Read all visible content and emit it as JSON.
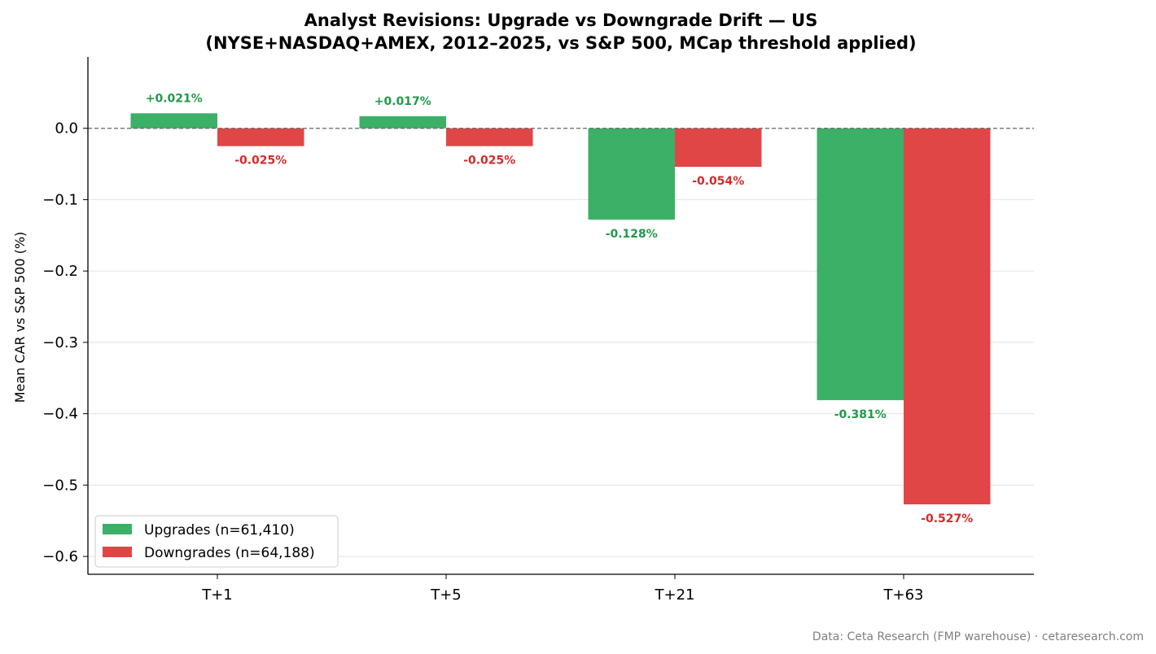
{
  "chart_data": {
    "type": "bar",
    "title_line1": "Analyst Revisions: Upgrade vs Downgrade Drift — US",
    "title_line2": "(NYSE+NASDAQ+AMEX, 2012–2025, vs S&P 500, MCap threshold applied)",
    "xlabel": "",
    "ylabel": "Mean CAR vs S&P 500 (%)",
    "categories": [
      "T+1",
      "T+5",
      "T+21",
      "T+63"
    ],
    "series": [
      {
        "name": "Upgrades (n=61,410)",
        "color": "#3bb066",
        "label_color": "#1f9b49",
        "values": [
          0.021,
          0.017,
          -0.128,
          -0.381
        ],
        "labels": [
          "+0.021%",
          "+0.017%",
          "-0.128%",
          "-0.381%"
        ]
      },
      {
        "name": "Downgrades (n=64,188)",
        "color": "#e04646",
        "label_color": "#d42a2a",
        "values": [
          -0.025,
          -0.025,
          -0.054,
          -0.527
        ],
        "labels": [
          "-0.025%",
          "-0.025%",
          "-0.054%",
          "-0.527%"
        ]
      }
    ],
    "ylim": [
      -0.625,
      0.1
    ],
    "yticks": [
      0.0,
      -0.1,
      -0.2,
      -0.3,
      -0.4,
      -0.5,
      -0.6
    ],
    "ytick_labels": [
      "0.0",
      "−0.1",
      "−0.2",
      "−0.3",
      "−0.4",
      "−0.5",
      "−0.6"
    ],
    "grid": true,
    "zero_line": "dashed",
    "legend_position": "lower-left"
  },
  "footer": {
    "source": "Data: Ceta Research (FMP warehouse) · cetaresearch.com"
  }
}
